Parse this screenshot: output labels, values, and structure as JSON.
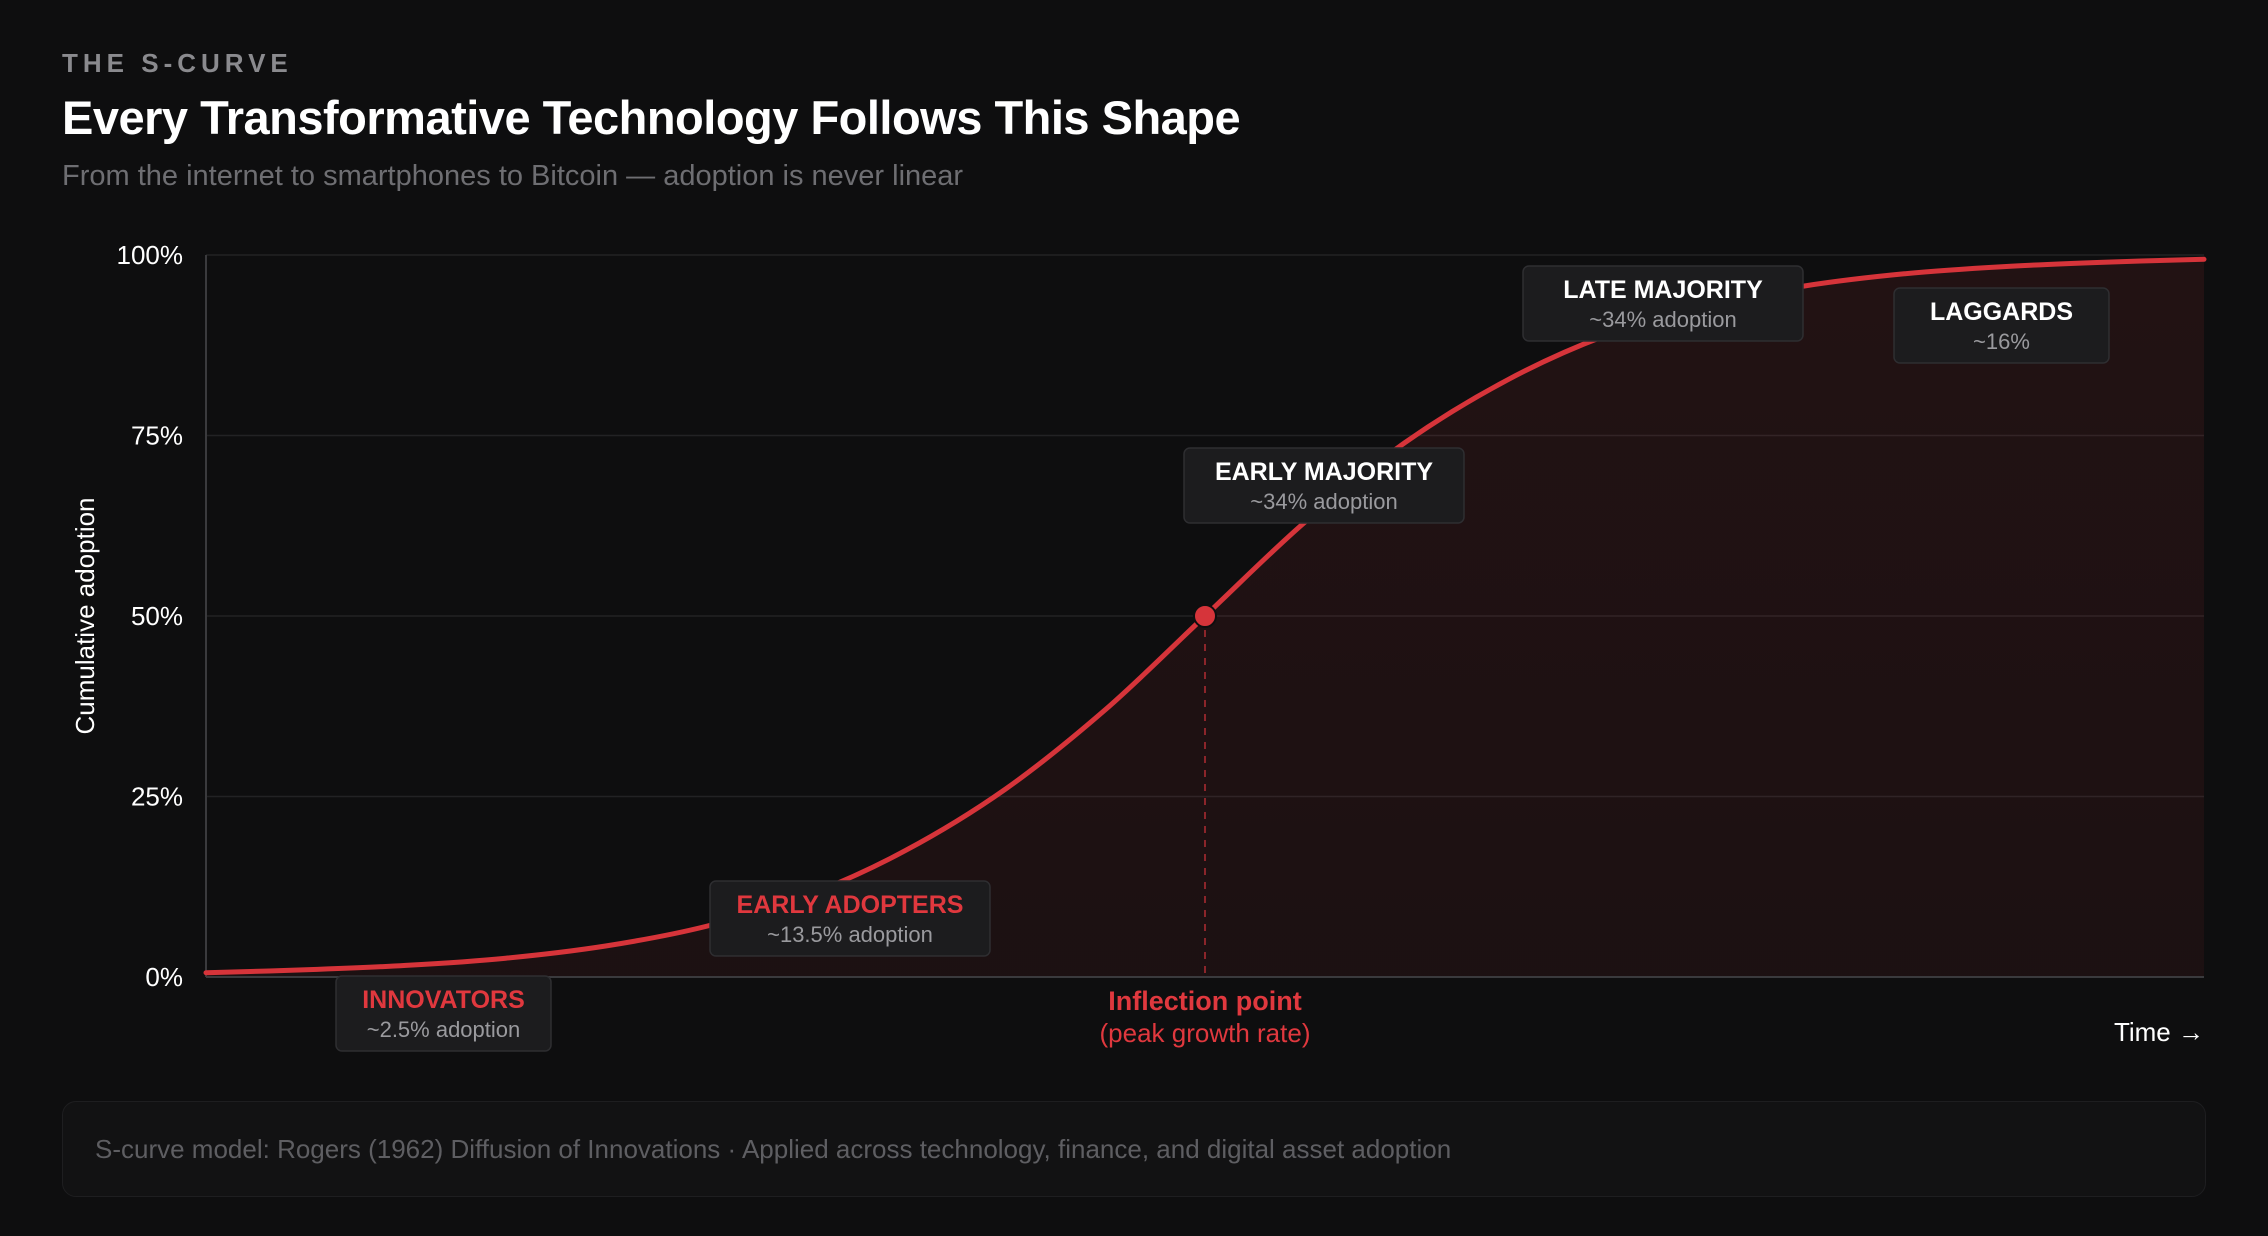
{
  "header": {
    "eyebrow": "THE S-CURVE",
    "title": "Every Transformative Technology Follows This Shape",
    "subtitle": "From the internet to smartphones to Bitcoin — adoption is never linear"
  },
  "chart_data": {
    "type": "line",
    "title": "Every Transformative Technology Follows This Shape",
    "ylabel": "Cumulative adoption",
    "xlabel": "Time →",
    "ylim": [
      0,
      100
    ],
    "yticks": [
      "0%",
      "25%",
      "50%",
      "75%",
      "100%"
    ],
    "ytick_values": [
      0,
      25,
      50,
      75,
      100
    ],
    "grid": true,
    "x": [
      0,
      5,
      10,
      15,
      20,
      25,
      30,
      35,
      40,
      45,
      50,
      55,
      60,
      65,
      70,
      75,
      80,
      85,
      90,
      95,
      100
    ],
    "series": [
      {
        "values": [
          0.6,
          1.0,
          1.6,
          2.6,
          4.3,
          7.0,
          11.2,
          17.5,
          26.0,
          37.0,
          50.0,
          63.0,
          74.0,
          82.5,
          88.8,
          93.0,
          95.7,
          97.4,
          98.4,
          99.0,
          99.4
        ]
      }
    ],
    "inflection": {
      "x": 50,
      "y": 50,
      "label": "Inflection point",
      "sublabel": "(peak growth rate)"
    },
    "segments": [
      {
        "name": "INNOVATORS",
        "share": "~2.5% adoption",
        "highlight": true
      },
      {
        "name": "EARLY ADOPTERS",
        "share": "~13.5% adoption",
        "highlight": true
      },
      {
        "name": "EARLY MAJORITY",
        "share": "~34% adoption",
        "highlight": false
      },
      {
        "name": "LATE MAJORITY",
        "share": "~34% adoption",
        "highlight": false
      },
      {
        "name": "LAGGARDS",
        "share": "~16%",
        "highlight": false
      }
    ],
    "colors": {
      "curve": "#d6343a",
      "highlight_text": "#e0383e",
      "grid": "#222224",
      "axis": "#3a3a3d",
      "fill": "#d6343a"
    }
  },
  "footer": {
    "text": "S-curve model: Rogers (1962) Diffusion of Innovations · Applied across technology, finance, and digital asset adoption"
  }
}
